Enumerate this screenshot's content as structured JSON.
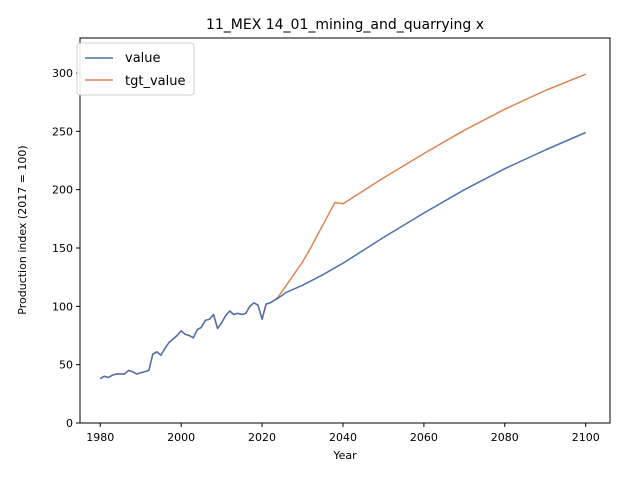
{
  "chart_data": {
    "type": "line",
    "title": "11_MEX 14_01_mining_and_quarrying x",
    "xlabel": "Year",
    "ylabel": "Production index (2017 = 100)",
    "xlim": [
      1975,
      2106
    ],
    "ylim": [
      0,
      330
    ],
    "xticks": [
      1980,
      2000,
      2020,
      2040,
      2060,
      2080,
      2100
    ],
    "yticks": [
      0,
      50,
      100,
      150,
      200,
      250,
      300
    ],
    "grid": false,
    "legend_position": "top-left",
    "series": [
      {
        "name": "tgt_value",
        "color": "#dd8452",
        "x": [
          1980,
          1981,
          1982,
          1983,
          1984,
          1985,
          1986,
          1987,
          1988,
          1989,
          1990,
          1991,
          1992,
          1993,
          1994,
          1995,
          1996,
          1997,
          1998,
          1999,
          2000,
          2001,
          2002,
          2003,
          2004,
          2005,
          2006,
          2007,
          2008,
          2009,
          2010,
          2011,
          2012,
          2013,
          2014,
          2015,
          2016,
          2017,
          2018,
          2019,
          2020,
          2021,
          2022,
          2023,
          2024,
          2026,
          2028,
          2030,
          2032,
          2034,
          2036,
          2038,
          2040,
          2050,
          2060,
          2070,
          2080,
          2090,
          2100
        ],
        "y": [
          38,
          40,
          39,
          41,
          42,
          42,
          42,
          45,
          44,
          42,
          43,
          44,
          45,
          59,
          61,
          58,
          64,
          69,
          72,
          75,
          79,
          76,
          75,
          73,
          80,
          82,
          88,
          89,
          93,
          81,
          86,
          92,
          96,
          93,
          94,
          93,
          94,
          100,
          103,
          101,
          89,
          102,
          103,
          105,
          108,
          118,
          128,
          138,
          150,
          163,
          176,
          189,
          188,
          210,
          231,
          251,
          269,
          285,
          299
        ]
      },
      {
        "name": "value",
        "color": "#4c72b0",
        "x": [
          1980,
          1981,
          1982,
          1983,
          1984,
          1985,
          1986,
          1987,
          1988,
          1989,
          1990,
          1991,
          1992,
          1993,
          1994,
          1995,
          1996,
          1997,
          1998,
          1999,
          2000,
          2001,
          2002,
          2003,
          2004,
          2005,
          2006,
          2007,
          2008,
          2009,
          2010,
          2011,
          2012,
          2013,
          2014,
          2015,
          2016,
          2017,
          2018,
          2019,
          2020,
          2021,
          2022,
          2023,
          2024,
          2026,
          2028,
          2030,
          2035,
          2040,
          2050,
          2060,
          2070,
          2080,
          2090,
          2100
        ],
        "y": [
          38,
          40,
          39,
          41,
          42,
          42,
          42,
          45,
          44,
          42,
          43,
          44,
          45,
          59,
          61,
          58,
          64,
          69,
          72,
          75,
          79,
          76,
          75,
          73,
          80,
          82,
          88,
          89,
          93,
          81,
          86,
          92,
          96,
          93,
          94,
          93,
          94,
          100,
          103,
          101,
          89,
          102,
          103,
          105,
          107,
          112,
          115,
          118,
          127,
          137,
          159,
          180,
          200,
          218,
          234,
          249
        ]
      }
    ]
  }
}
